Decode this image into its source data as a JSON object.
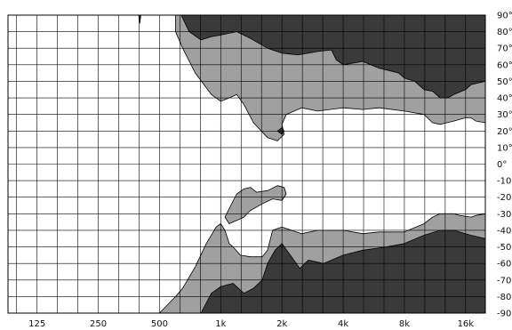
{
  "chart_data": {
    "type": "heatmap",
    "subtype": "polar-contour",
    "x_scale": "log",
    "x_range_hz": [
      90,
      20000
    ],
    "y_range_deg": [
      -90,
      90
    ],
    "grid": true,
    "x_tick_labels": [
      {
        "value": 125,
        "label": "125"
      },
      {
        "value": 250,
        "label": "250"
      },
      {
        "value": 500,
        "label": "500"
      },
      {
        "value": 1000,
        "label": "1k"
      },
      {
        "value": 2000,
        "label": "2k"
      },
      {
        "value": 4000,
        "label": "4k"
      },
      {
        "value": 8000,
        "label": "8k"
      },
      {
        "value": 16000,
        "label": "16k"
      }
    ],
    "y_tick_labels": [
      "90°",
      "80°",
      "70°",
      "60°",
      "50°",
      "40°",
      "30°",
      "20°",
      "10°",
      "0°",
      "-10°",
      "-20°",
      "-30°",
      "-40°",
      "-50°",
      "-60°",
      "-70°",
      "-80°",
      "-90°"
    ],
    "y_ticks": [
      90,
      80,
      70,
      60,
      50,
      40,
      30,
      20,
      10,
      0,
      -10,
      -20,
      -30,
      -40,
      -50,
      -60,
      -70,
      -80,
      -90
    ],
    "colors": {
      "background": "#ffffff",
      "level_1": "#a0a0a0",
      "level_2": "#3a3a3a",
      "grid": "#000000",
      "outline": "#000000"
    },
    "regions": [
      {
        "name": "upper-level-1",
        "level": 1,
        "points": [
          [
            600,
            90
          ],
          [
            600,
            80
          ],
          [
            650,
            70
          ],
          [
            750,
            55
          ],
          [
            900,
            42
          ],
          [
            1000,
            38
          ],
          [
            1100,
            40
          ],
          [
            1200,
            42
          ],
          [
            1300,
            36
          ],
          [
            1450,
            25
          ],
          [
            1700,
            16
          ],
          [
            1900,
            14
          ],
          [
            2050,
            18
          ],
          [
            2000,
            24
          ],
          [
            2100,
            30
          ],
          [
            2500,
            34
          ],
          [
            3000,
            32
          ],
          [
            4000,
            34
          ],
          [
            5000,
            33
          ],
          [
            6000,
            34
          ],
          [
            8000,
            32
          ],
          [
            10000,
            30
          ],
          [
            11000,
            25
          ],
          [
            12000,
            24
          ],
          [
            14000,
            26
          ],
          [
            16000,
            28
          ],
          [
            17000,
            28
          ],
          [
            18000,
            26
          ],
          [
            20000,
            25
          ],
          [
            20000,
            90
          ]
        ]
      },
      {
        "name": "upper-level-2",
        "level": 2,
        "points": [
          [
            640,
            90
          ],
          [
            700,
            80
          ],
          [
            800,
            75
          ],
          [
            900,
            77
          ],
          [
            1000,
            78
          ],
          [
            1200,
            80
          ],
          [
            1400,
            76
          ],
          [
            1700,
            70
          ],
          [
            2000,
            67
          ],
          [
            2400,
            66
          ],
          [
            3000,
            68
          ],
          [
            3500,
            69
          ],
          [
            3700,
            63
          ],
          [
            4000,
            60
          ],
          [
            5000,
            62
          ],
          [
            6000,
            58
          ],
          [
            7000,
            56
          ],
          [
            7500,
            55
          ],
          [
            8000,
            52
          ],
          [
            9000,
            50
          ],
          [
            10000,
            45
          ],
          [
            11000,
            44
          ],
          [
            12000,
            40
          ],
          [
            13000,
            40
          ],
          [
            14000,
            42
          ],
          [
            16000,
            45
          ],
          [
            17000,
            48
          ],
          [
            20000,
            50
          ],
          [
            20000,
            90
          ]
        ]
      },
      {
        "name": "top-notch",
        "level": 2,
        "points": [
          [
            395,
            90
          ],
          [
            400,
            85
          ],
          [
            405,
            90
          ]
        ]
      },
      {
        "name": "level-2-dot",
        "level": 2,
        "points": [
          [
            1900,
            20
          ],
          [
            2000,
            18
          ],
          [
            2050,
            20
          ],
          [
            2000,
            22
          ]
        ]
      },
      {
        "name": "mid-island",
        "level": 1,
        "points": [
          [
            1120,
            -25
          ],
          [
            1200,
            -18
          ],
          [
            1300,
            -15
          ],
          [
            1400,
            -14
          ],
          [
            1500,
            -17
          ],
          [
            1700,
            -16
          ],
          [
            1900,
            -13
          ],
          [
            2050,
            -14
          ],
          [
            2100,
            -18
          ],
          [
            2000,
            -22
          ],
          [
            1800,
            -21
          ],
          [
            1600,
            -24
          ],
          [
            1400,
            -28
          ],
          [
            1300,
            -32
          ],
          [
            1200,
            -34
          ],
          [
            1100,
            -36
          ],
          [
            1050,
            -32
          ]
        ]
      },
      {
        "name": "lower-level-1",
        "level": 1,
        "points": [
          [
            1800,
            -40
          ],
          [
            2000,
            -38
          ],
          [
            2500,
            -42
          ],
          [
            3000,
            -40
          ],
          [
            4000,
            -40
          ],
          [
            5000,
            -42
          ],
          [
            6000,
            -41
          ],
          [
            8000,
            -41
          ],
          [
            10000,
            -36
          ],
          [
            11000,
            -32
          ],
          [
            12000,
            -30
          ],
          [
            13000,
            -30
          ],
          [
            14000,
            -30
          ],
          [
            15000,
            -31
          ],
          [
            17000,
            -32
          ],
          [
            18000,
            -31
          ],
          [
            20000,
            -30
          ],
          [
            20000,
            -90
          ],
          [
            500,
            -90
          ],
          [
            600,
            -80
          ],
          [
            650,
            -75
          ],
          [
            750,
            -62
          ],
          [
            850,
            -48
          ],
          [
            950,
            -38
          ],
          [
            1000,
            -36
          ],
          [
            1050,
            -40
          ],
          [
            1100,
            -48
          ],
          [
            1150,
            -50
          ],
          [
            1250,
            -55
          ],
          [
            1400,
            -56
          ],
          [
            1600,
            -56
          ],
          [
            1700,
            -52
          ]
        ]
      },
      {
        "name": "lower-level-2",
        "level": 2,
        "points": [
          [
            800,
            -90
          ],
          [
            900,
            -78
          ],
          [
            1000,
            -74
          ],
          [
            1150,
            -72
          ],
          [
            1300,
            -78
          ],
          [
            1450,
            -75
          ],
          [
            1600,
            -70
          ],
          [
            1700,
            -60
          ],
          [
            1850,
            -52
          ],
          [
            2000,
            -48
          ],
          [
            2200,
            -55
          ],
          [
            2450,
            -63
          ],
          [
            2700,
            -58
          ],
          [
            3200,
            -60
          ],
          [
            4000,
            -55
          ],
          [
            5000,
            -52
          ],
          [
            6500,
            -50
          ],
          [
            8000,
            -48
          ],
          [
            10000,
            -43
          ],
          [
            12000,
            -40
          ],
          [
            14000,
            -40
          ],
          [
            17000,
            -43
          ],
          [
            20000,
            -45
          ],
          [
            20000,
            -90
          ]
        ]
      }
    ]
  }
}
